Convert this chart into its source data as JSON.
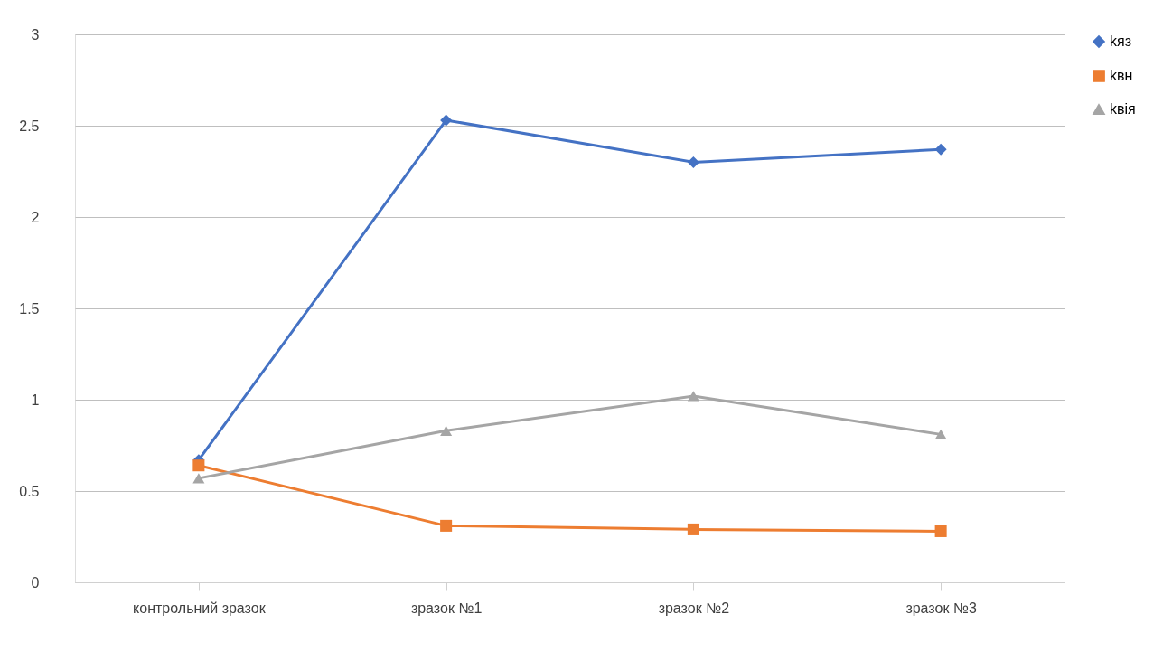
{
  "chart_data": {
    "type": "line",
    "categories": [
      "контрольний зразок",
      "зразок №1",
      "зразок №2",
      "зразок №3"
    ],
    "series": [
      {
        "name": "kяз",
        "color": "#4472c4",
        "marker": "diamond",
        "values": [
          0.67,
          2.53,
          2.3,
          2.37
        ]
      },
      {
        "name": "kвн",
        "color": "#ed7d31",
        "marker": "square",
        "values": [
          0.64,
          0.31,
          0.29,
          0.28
        ]
      },
      {
        "name": "kвія",
        "color": "#a5a5a5",
        "marker": "triangle",
        "values": [
          0.57,
          0.83,
          1.02,
          0.81
        ]
      }
    ],
    "ylim": [
      0,
      3
    ],
    "yticks": [
      0,
      0.5,
      1,
      1.5,
      2,
      2.5,
      3
    ],
    "grid": "y",
    "legend": "right",
    "line_style": "solid"
  }
}
